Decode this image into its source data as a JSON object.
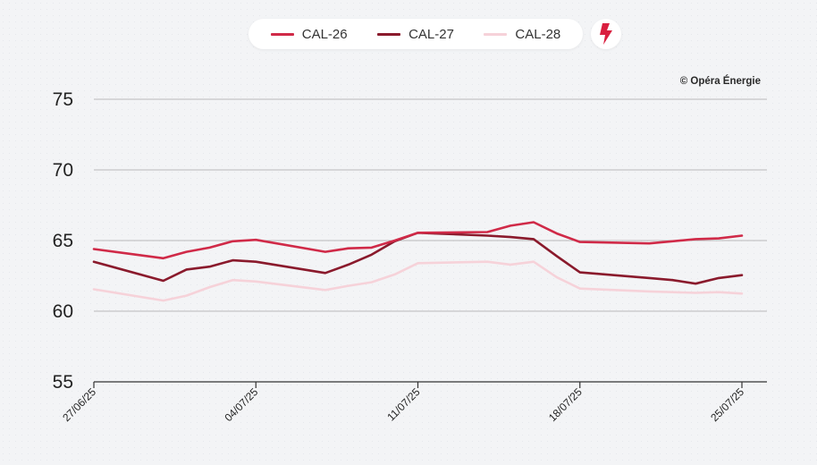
{
  "credit": "© Opéra Énergie",
  "brand_icon": "lightning-bolt-icon",
  "colors": {
    "CAL-26": "#d02a48",
    "CAL-27": "#8a1a2c",
    "CAL-28": "#f6d2d9",
    "grid": "#b9b9b9",
    "brand": "#d91f3f"
  },
  "chart_data": {
    "type": "line",
    "title": "",
    "xlabel": "",
    "ylabel": "",
    "ylim": [
      55,
      75
    ],
    "yticks": [
      55,
      60,
      65,
      70,
      75
    ],
    "xlim": [
      "27/06/25",
      "25/07/25"
    ],
    "xticks": [
      "27/06/25",
      "04/07/25",
      "11/07/25",
      "18/07/25",
      "25/07/25"
    ],
    "grid": true,
    "legend": "top-center",
    "x": [
      "27/06/25",
      "30/06/25",
      "01/07/25",
      "02/07/25",
      "03/07/25",
      "04/07/25",
      "07/07/25",
      "08/07/25",
      "09/07/25",
      "10/07/25",
      "11/07/25",
      "14/07/25",
      "15/07/25",
      "16/07/25",
      "17/07/25",
      "18/07/25",
      "21/07/25",
      "22/07/25",
      "23/07/25",
      "24/07/25",
      "25/07/25"
    ],
    "series": [
      {
        "name": "CAL-26",
        "values": [
          64.4,
          63.75,
          64.2,
          64.5,
          64.95,
          65.05,
          64.2,
          64.45,
          64.5,
          65.0,
          65.55,
          65.6,
          66.05,
          66.3,
          65.5,
          64.9,
          64.8,
          64.95,
          65.1,
          65.15,
          65.35
        ]
      },
      {
        "name": "CAL-27",
        "values": [
          63.5,
          62.15,
          62.95,
          63.15,
          63.6,
          63.5,
          62.7,
          63.3,
          64.0,
          64.95,
          65.55,
          65.35,
          65.25,
          65.1,
          63.9,
          62.75,
          62.35,
          62.2,
          61.95,
          62.35,
          62.55
        ]
      },
      {
        "name": "CAL-28",
        "values": [
          61.55,
          60.75,
          61.1,
          61.7,
          62.2,
          62.1,
          61.5,
          61.8,
          62.05,
          62.6,
          63.4,
          63.5,
          63.3,
          63.5,
          62.4,
          61.6,
          61.4,
          61.35,
          61.3,
          61.35,
          61.25
        ]
      }
    ]
  }
}
